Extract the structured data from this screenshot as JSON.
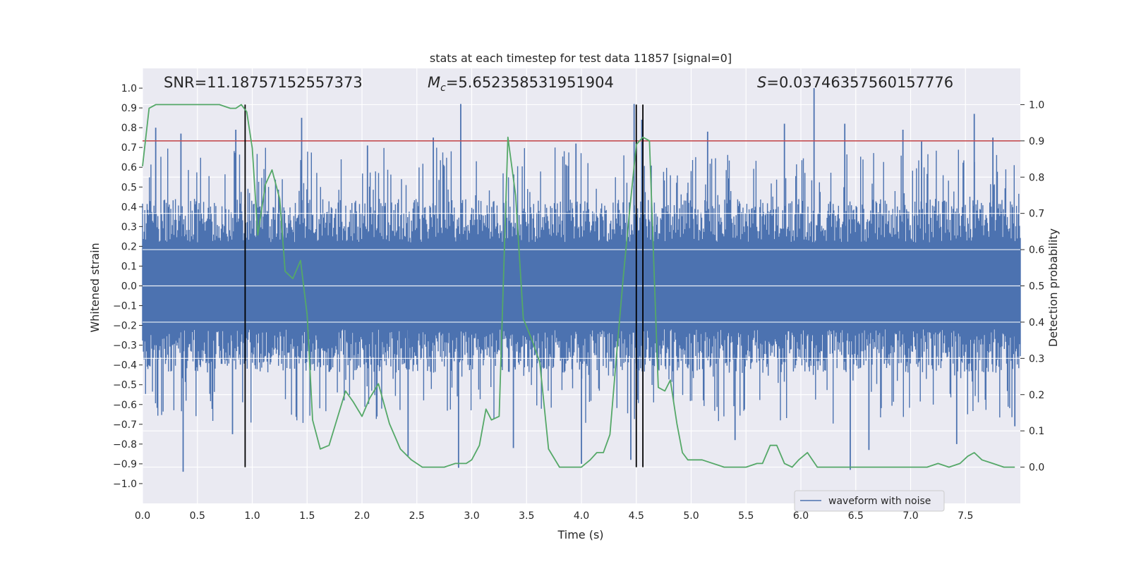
{
  "chart_data": {
    "type": "line",
    "title": "stats at each timestep for test data 11857 [signal=0]",
    "xlabel": "Time (s)",
    "ylabel_left": "Whitened strain",
    "ylabel_right": "Detection probability",
    "xlim": [
      0,
      8
    ],
    "ylim_left": [
      -1.1,
      1.1
    ],
    "ylim_right": [
      -0.1,
      1.1
    ],
    "x_ticks": [
      0.0,
      0.5,
      1.0,
      1.5,
      2.0,
      2.5,
      3.0,
      3.5,
      4.0,
      4.5,
      5.0,
      5.5,
      6.0,
      6.5,
      7.0,
      7.5
    ],
    "x_tick_labels": [
      "0.0",
      "0.5",
      "1.0",
      "1.5",
      "2.0",
      "2.5",
      "3.0",
      "3.5",
      "4.0",
      "4.5",
      "5.0",
      "5.5",
      "6.0",
      "6.5",
      "7.0",
      "7.5"
    ],
    "y_left_ticks": [
      1.0,
      0.9,
      0.8,
      0.7,
      0.6,
      0.5,
      0.4,
      0.3,
      0.2,
      0.1,
      0.0,
      -0.1,
      -0.2,
      -0.3,
      -0.4,
      -0.5,
      -0.6,
      -0.7,
      -0.8,
      -0.9,
      -1.0
    ],
    "y_left_tick_labels": [
      "1.0",
      "0.9",
      "0.8",
      "0.7",
      "0.6",
      "0.5",
      "0.4",
      "0.3",
      "0.2",
      "0.1",
      "0.0",
      "−0.1",
      "−0.2",
      "−0.3",
      "−0.4",
      "−0.5",
      "−0.6",
      "−0.7",
      "−0.8",
      "−0.9",
      "−1.0"
    ],
    "y_right_ticks": [
      1.0,
      0.9,
      0.8,
      0.7,
      0.6,
      0.5,
      0.4,
      0.3,
      0.2,
      0.1,
      0.0
    ],
    "y_right_tick_labels": [
      "1.0",
      "0.9",
      "0.8",
      "0.7",
      "0.6",
      "0.5",
      "0.4",
      "0.3",
      "0.2",
      "0.1",
      "0.0"
    ],
    "annotations": {
      "snr": "SNR=11.18757152557373",
      "mc_symbol": "M",
      "mc_sub": "c",
      "mc_value": "=5.652358531951904",
      "s_symbol": "S",
      "s_value": "=0.03746357560157776"
    },
    "threshold": {
      "value": 0.9,
      "axis": "right",
      "color": "#c44e52"
    },
    "vertical_markers": [
      0.935,
      4.5,
      4.56
    ],
    "legend": {
      "label": "waveform with noise",
      "location": "lower-right"
    },
    "waveform": {
      "name": "waveform with noise",
      "color": "#4c72b0",
      "description": "dense noisy whitened strain, mostly within ±0.4 with spikes to about ±0.9",
      "spikes_up": [
        [
          0.12,
          0.8
        ],
        [
          0.35,
          0.77
        ],
        [
          0.85,
          0.79
        ],
        [
          1.45,
          0.85
        ],
        [
          2.05,
          0.71
        ],
        [
          2.65,
          0.75
        ],
        [
          2.9,
          0.92
        ],
        [
          3.95,
          0.72
        ],
        [
          4.48,
          0.92
        ],
        [
          4.55,
          0.84
        ],
        [
          5.15,
          0.78
        ],
        [
          5.85,
          0.82
        ],
        [
          6.12,
          1.0
        ],
        [
          6.4,
          0.82
        ],
        [
          6.93,
          0.79
        ],
        [
          7.1,
          0.73
        ],
        [
          7.58,
          0.87
        ],
        [
          7.75,
          0.75
        ]
      ],
      "spikes_down": [
        [
          0.37,
          -0.94
        ],
        [
          0.82,
          -0.75
        ],
        [
          2.42,
          -0.86
        ],
        [
          2.88,
          -0.92
        ],
        [
          3.38,
          -0.82
        ],
        [
          4.0,
          -0.9
        ],
        [
          4.45,
          -0.88
        ],
        [
          5.4,
          -0.78
        ],
        [
          6.45,
          -0.93
        ],
        [
          6.62,
          -0.83
        ],
        [
          7.42,
          -0.8
        ],
        [
          7.95,
          -0.71
        ]
      ]
    },
    "series": [
      {
        "name": "Detection probability",
        "axis": "right",
        "color": "#55a868",
        "x": [
          0.0,
          0.06,
          0.12,
          0.2,
          0.3,
          0.4,
          0.5,
          0.6,
          0.7,
          0.8,
          0.85,
          0.9,
          0.95,
          1.0,
          1.05,
          1.12,
          1.18,
          1.25,
          1.3,
          1.37,
          1.44,
          1.5,
          1.55,
          1.62,
          1.7,
          1.78,
          1.85,
          1.92,
          2.0,
          2.07,
          2.15,
          2.25,
          2.35,
          2.45,
          2.55,
          2.65,
          2.75,
          2.85,
          2.95,
          3.0,
          3.07,
          3.13,
          3.18,
          3.25,
          3.33,
          3.4,
          3.47,
          3.55,
          3.62,
          3.7,
          3.8,
          3.9,
          4.0,
          4.08,
          4.14,
          4.2,
          4.26,
          4.32,
          4.38,
          4.44,
          4.5,
          4.56,
          4.62,
          4.66,
          4.7,
          4.76,
          4.81,
          4.87,
          4.92,
          4.97,
          5.1,
          5.3,
          5.5,
          5.6,
          5.65,
          5.72,
          5.78,
          5.85,
          5.92,
          5.98,
          6.06,
          6.15,
          6.3,
          6.5,
          6.7,
          6.85,
          7.0,
          7.15,
          7.25,
          7.35,
          7.45,
          7.52,
          7.58,
          7.65,
          7.75,
          7.85,
          7.95
        ],
        "y": [
          0.83,
          0.99,
          1.0,
          1.0,
          1.0,
          1.0,
          1.0,
          1.0,
          1.0,
          0.99,
          0.99,
          1.0,
          0.98,
          0.88,
          0.64,
          0.78,
          0.82,
          0.74,
          0.54,
          0.52,
          0.57,
          0.42,
          0.13,
          0.05,
          0.06,
          0.14,
          0.21,
          0.18,
          0.14,
          0.19,
          0.23,
          0.12,
          0.05,
          0.02,
          0.0,
          0.0,
          0.0,
          0.01,
          0.01,
          0.02,
          0.06,
          0.16,
          0.13,
          0.14,
          0.91,
          0.75,
          0.41,
          0.35,
          0.29,
          0.05,
          0.0,
          0.0,
          0.0,
          0.02,
          0.04,
          0.04,
          0.09,
          0.31,
          0.52,
          0.71,
          0.89,
          0.91,
          0.9,
          0.56,
          0.22,
          0.21,
          0.24,
          0.12,
          0.04,
          0.02,
          0.02,
          0.0,
          0.0,
          0.01,
          0.01,
          0.06,
          0.06,
          0.01,
          0.0,
          0.02,
          0.04,
          0.0,
          0.0,
          0.0,
          0.0,
          0.0,
          0.0,
          0.0,
          0.01,
          0.0,
          0.01,
          0.03,
          0.04,
          0.02,
          0.01,
          0.0,
          0.0
        ]
      }
    ]
  }
}
